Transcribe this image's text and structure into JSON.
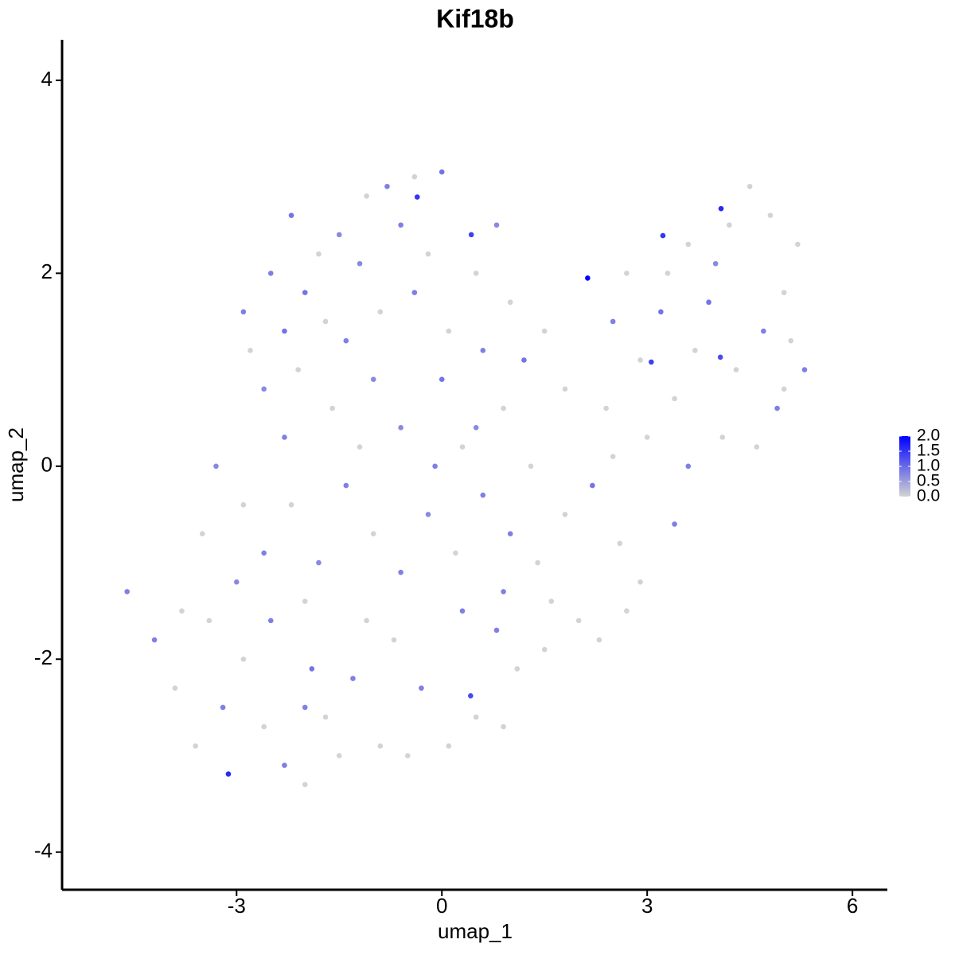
{
  "chart_data": {
    "type": "scatter",
    "title": "Kif18b",
    "x_label": "umap_1",
    "y_label": "umap_2",
    "xlim": [
      -5.55,
      6.51
    ],
    "ylim": [
      -4.39,
      4.42
    ],
    "xticks": [
      -3,
      0,
      3,
      6
    ],
    "yticks": [
      -4,
      -2,
      0,
      2,
      4
    ],
    "grid": false,
    "colors": [
      "#d3d3d3",
      "#0000ff"
    ],
    "colorbar": {
      "lim": [
        0,
        2
      ],
      "ticks": [
        {
          "value": 0,
          "label": "0.0"
        },
        {
          "value": 0.5,
          "label": "0.5"
        },
        {
          "value": 1,
          "label": "1.0"
        },
        {
          "value": 1.5,
          "label": "1.5"
        },
        {
          "value": 2,
          "label": "2.0"
        }
      ]
    },
    "x": [
      -2.2,
      -1.8,
      -2.5,
      -2.0,
      -1.5,
      -1.1,
      -0.8,
      -0.4,
      0.0,
      -0.6,
      -1.2,
      -1.7,
      -2.3,
      -2.8,
      -2.9,
      -2.6,
      -2.1,
      -1.4,
      -0.9,
      -0.4,
      0.1,
      -0.2,
      -1.0,
      -1.6,
      -2.3,
      -0.6,
      0.0,
      0.5,
      0.8,
      1.0,
      0.6,
      1.2,
      0.9,
      1.5,
      1.8,
      0.3,
      2.7,
      3.2,
      3.6,
      4.2,
      4.5,
      4.8,
      5.2,
      5.0,
      4.7,
      4.3,
      5.3,
      4.9,
      3.9,
      3.7,
      3.4,
      2.9,
      2.5,
      3.0,
      3.6,
      4.1,
      4.6,
      5.0,
      2.4,
      3.3,
      4.0,
      5.1,
      -3.3,
      -2.9,
      -2.6,
      -2.2,
      -1.8,
      -1.4,
      -1.0,
      -0.6,
      -0.2,
      0.2,
      0.6,
      1.0,
      1.4,
      1.8,
      2.2,
      2.6,
      2.9,
      3.4,
      1.6,
      0.9,
      -0.1,
      -1.2,
      -2.0,
      -3.0,
      -3.5,
      0.5,
      1.3,
      2.5,
      -4.6,
      -4.2,
      -3.9,
      -3.6,
      -3.2,
      -2.9,
      -2.6,
      -2.3,
      -2.0,
      -1.7,
      -1.3,
      -0.9,
      -0.7,
      -0.3,
      0.1,
      0.5,
      0.8,
      1.1,
      0.9,
      1.5,
      2.0,
      2.3,
      2.7,
      -2.5,
      -1.9,
      -3.4,
      -0.5,
      -1.5,
      -3.8,
      -2.0,
      0.3,
      -1.1,
      2.13,
      -3.12,
      -0.36,
      4.08,
      3.23,
      3.06,
      0.43,
      4.07,
      0.42
    ],
    "y": [
      2.6,
      2.2,
      2.0,
      1.8,
      2.4,
      2.8,
      2.9,
      3.0,
      3.05,
      2.5,
      2.1,
      1.5,
      1.4,
      1.2,
      1.6,
      0.8,
      1.0,
      1.3,
      1.6,
      1.8,
      1.4,
      2.2,
      0.9,
      0.6,
      0.3,
      0.4,
      0.9,
      2.0,
      2.5,
      1.7,
      1.2,
      1.1,
      0.6,
      1.4,
      0.8,
      0.2,
      2.0,
      1.6,
      2.3,
      2.5,
      2.9,
      2.6,
      2.3,
      1.8,
      1.4,
      1.0,
      1.0,
      0.6,
      1.7,
      1.2,
      0.7,
      1.1,
      1.5,
      0.3,
      0.0,
      0.3,
      0.2,
      0.8,
      0.6,
      2.0,
      2.1,
      1.3,
      0.0,
      -0.4,
      -0.9,
      -0.4,
      -1.0,
      -0.2,
      -0.7,
      -1.1,
      -0.5,
      -0.9,
      -0.3,
      -0.7,
      -1.0,
      -0.5,
      -0.2,
      -0.8,
      -1.2,
      -0.6,
      -1.4,
      -1.3,
      0.0,
      0.2,
      -1.4,
      -1.2,
      -0.7,
      0.4,
      0.0,
      0.1,
      -1.3,
      -1.8,
      -2.3,
      -2.9,
      -2.5,
      -2.0,
      -2.7,
      -3.1,
      -3.3,
      -2.6,
      -2.2,
      -2.9,
      -1.8,
      -2.3,
      -2.9,
      -2.6,
      -1.7,
      -2.1,
      -2.7,
      -1.9,
      -1.6,
      -1.8,
      -1.5,
      -1.6,
      -2.1,
      -1.6,
      -3.0,
      -3.0,
      -1.5,
      -2.5,
      -1.5,
      -1.6,
      1.95,
      -3.19,
      2.79,
      2.67,
      2.39,
      1.08,
      2.4,
      1.13,
      -2.38
    ],
    "values": [
      0.9,
      0,
      0.8,
      0.9,
      0.7,
      0,
      0.8,
      0,
      0.9,
      0.8,
      0.7,
      0,
      0.9,
      0,
      0.8,
      0.7,
      0,
      0.8,
      0,
      0.8,
      0,
      0,
      0.7,
      0,
      0.8,
      0.7,
      0.9,
      0,
      0.7,
      0,
      0.8,
      0.9,
      0,
      0,
      0,
      0,
      0,
      0.9,
      0,
      0,
      0,
      0,
      0,
      0,
      0.8,
      0,
      0.8,
      0.8,
      0.9,
      0,
      0,
      0,
      0.8,
      0,
      0.8,
      0,
      0,
      0,
      0,
      0,
      0.7,
      0,
      0.7,
      0,
      0.8,
      0,
      0.7,
      0.8,
      0,
      0.8,
      0.7,
      0,
      0.8,
      0.8,
      0,
      0,
      0.9,
      0,
      0,
      0.8,
      0,
      0.8,
      0.8,
      0,
      0,
      0.7,
      0,
      0.7,
      0,
      0,
      0.8,
      0.8,
      0,
      0,
      0.8,
      0,
      0,
      0.8,
      0,
      0,
      0.8,
      0,
      0,
      0.8,
      0,
      0,
      0.8,
      0,
      0,
      0,
      0,
      0,
      0,
      0.8,
      0.9,
      0,
      0,
      0,
      0,
      0.8,
      0.8,
      0,
      2.0,
      1.6,
      1.5,
      1.6,
      1.5,
      1.4,
      1.4,
      1.3,
      1.3
    ]
  }
}
